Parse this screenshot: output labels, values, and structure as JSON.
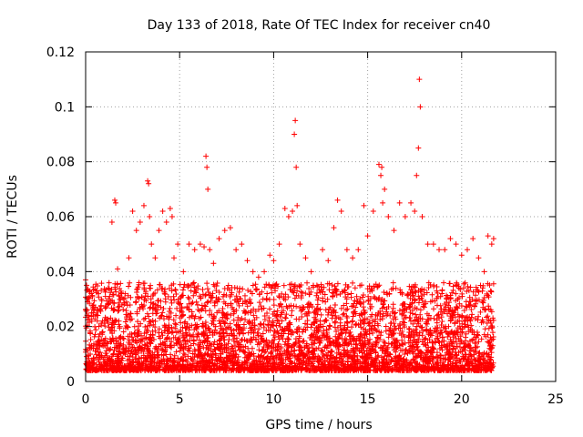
{
  "chart_data": {
    "type": "scatter",
    "title": "Day 133 of 2018, Rate Of TEC Index for receiver cn40",
    "xlabel": "GPS time / hours",
    "ylabel": "ROTI / TECUs",
    "xlim": [
      0,
      25
    ],
    "ylim": [
      0,
      0.12
    ],
    "xticks": [
      0,
      5,
      10,
      15,
      20,
      25
    ],
    "yticks": [
      0,
      0.02,
      0.04,
      0.06,
      0.08,
      0.1,
      0.12
    ],
    "xtick_labels": [
      "0",
      "5",
      "10",
      "15",
      "20",
      "25"
    ],
    "ytick_labels": [
      "0",
      "0.02",
      "0.04",
      "0.06",
      "0.08",
      "0.1",
      "0.12"
    ],
    "grid": true,
    "marker": "+",
    "color": "#ff0000",
    "data_extent_x": [
      0,
      21.7
    ],
    "series": [
      {
        "x": [
          0.0,
          0.05,
          0.1,
          0.15,
          0.2,
          0.3,
          0.4,
          0.6,
          0.9,
          1.2,
          1.4,
          1.55,
          1.6,
          1.7,
          2.0,
          2.3,
          2.5,
          2.7,
          2.9,
          3.1,
          3.3,
          3.35,
          3.4,
          3.5,
          3.7,
          3.9,
          4.1,
          4.3,
          4.5,
          4.6,
          4.7,
          4.9,
          5.2,
          5.5,
          5.8,
          6.1,
          6.3,
          6.4,
          6.45,
          6.5,
          6.6,
          6.8,
          7.1,
          7.4,
          7.7,
          8.0,
          8.3,
          8.6,
          8.9,
          9.2,
          9.5,
          9.8,
          10.0,
          10.3,
          10.6,
          10.8,
          11.0,
          11.1,
          11.15,
          11.2,
          11.25,
          11.4,
          11.7,
          12.0,
          12.3,
          12.6,
          12.9,
          13.2,
          13.4,
          13.6,
          13.9,
          14.2,
          14.5,
          14.8,
          15.0,
          15.3,
          15.6,
          15.7,
          15.75,
          15.8,
          15.9,
          16.1,
          16.4,
          16.7,
          17.0,
          17.3,
          17.5,
          17.6,
          17.7,
          17.75,
          17.8,
          17.9,
          18.2,
          18.5,
          18.8,
          19.1,
          19.4,
          19.7,
          20.0,
          20.3,
          20.6,
          20.9,
          21.2,
          21.4,
          21.6,
          21.7
        ],
        "y": [
          0.037,
          0.035,
          0.029,
          0.024,
          0.033,
          0.032,
          0.025,
          0.033,
          0.022,
          0.028,
          0.058,
          0.066,
          0.065,
          0.041,
          0.03,
          0.045,
          0.062,
          0.055,
          0.058,
          0.064,
          0.073,
          0.072,
          0.06,
          0.05,
          0.045,
          0.055,
          0.062,
          0.058,
          0.063,
          0.06,
          0.045,
          0.05,
          0.04,
          0.05,
          0.048,
          0.05,
          0.049,
          0.082,
          0.078,
          0.07,
          0.048,
          0.043,
          0.052,
          0.055,
          0.056,
          0.048,
          0.05,
          0.044,
          0.04,
          0.038,
          0.04,
          0.046,
          0.044,
          0.05,
          0.063,
          0.06,
          0.062,
          0.09,
          0.095,
          0.078,
          0.064,
          0.05,
          0.045,
          0.04,
          0.035,
          0.048,
          0.044,
          0.056,
          0.066,
          0.062,
          0.048,
          0.045,
          0.048,
          0.064,
          0.053,
          0.062,
          0.079,
          0.075,
          0.078,
          0.065,
          0.07,
          0.06,
          0.055,
          0.065,
          0.06,
          0.065,
          0.062,
          0.075,
          0.085,
          0.11,
          0.1,
          0.06,
          0.05,
          0.05,
          0.048,
          0.048,
          0.052,
          0.05,
          0.046,
          0.048,
          0.052,
          0.045,
          0.04,
          0.053,
          0.05,
          0.052
        ]
      }
    ]
  }
}
